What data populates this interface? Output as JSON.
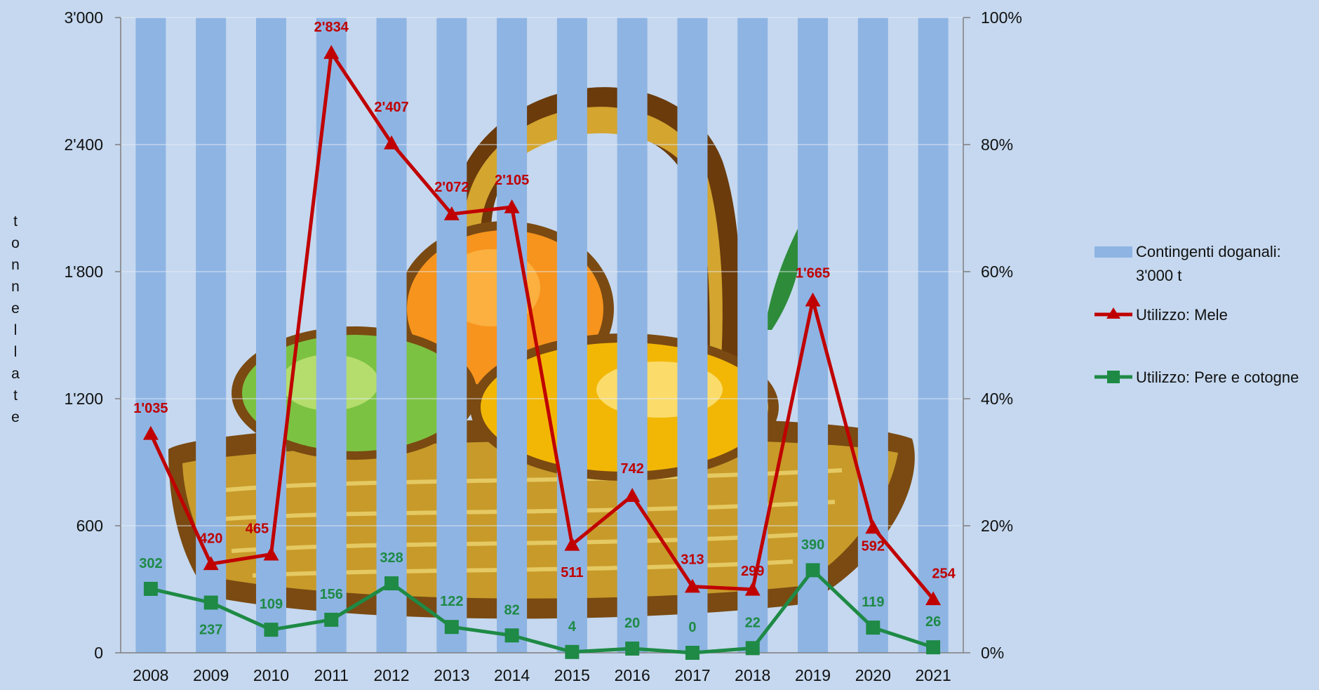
{
  "chart_data": {
    "type": "bar",
    "categories": [
      "2008",
      "2009",
      "2010",
      "2011",
      "2012",
      "2013",
      "2014",
      "2015",
      "2016",
      "2017",
      "2018",
      "2019",
      "2020",
      "2021"
    ],
    "ylabel": "tonnellate",
    "ylim": [
      0,
      3000
    ],
    "y_ticks": [
      "0",
      "600",
      "1'200",
      "1'800",
      "2'400",
      "3'000"
    ],
    "y2_ticks": [
      "0%",
      "20%",
      "40%",
      "60%",
      "80%",
      "100%"
    ],
    "y2lim": [
      0,
      1
    ],
    "grid": true,
    "legend_position": "right",
    "series": [
      {
        "name": "Contingenti doganali: 3'000 t",
        "name_lines": [
          "Contingenti doganali:",
          "3'000 t"
        ],
        "type": "bar",
        "color": "#8eb4e3",
        "values": [
          3000,
          3000,
          3000,
          3000,
          3000,
          3000,
          3000,
          3000,
          3000,
          3000,
          3000,
          3000,
          3000,
          3000
        ]
      },
      {
        "name": "Utilizzo: Mele",
        "type": "line",
        "marker": "triangle",
        "color": "#c00000",
        "values": [
          1035,
          420,
          465,
          2834,
          2407,
          2072,
          2105,
          511,
          742,
          313,
          299,
          1665,
          592,
          254
        ],
        "labels": [
          "1'035",
          "420",
          "465",
          "2'834",
          "2'407",
          "2'072",
          "2'105",
          "511",
          "742",
          "313",
          "299",
          "1'665",
          "592",
          "254"
        ]
      },
      {
        "name": "Utilizzo: Pere e cotogne",
        "type": "line",
        "marker": "square",
        "color": "#1e8a45",
        "values": [
          302,
          237,
          109,
          156,
          328,
          122,
          82,
          4,
          20,
          0,
          22,
          390,
          119,
          26
        ],
        "labels": [
          "302",
          "237",
          "109",
          "156",
          "328",
          "122",
          "82",
          "4",
          "20",
          "0",
          "22",
          "390",
          "119",
          "26"
        ]
      }
    ]
  }
}
